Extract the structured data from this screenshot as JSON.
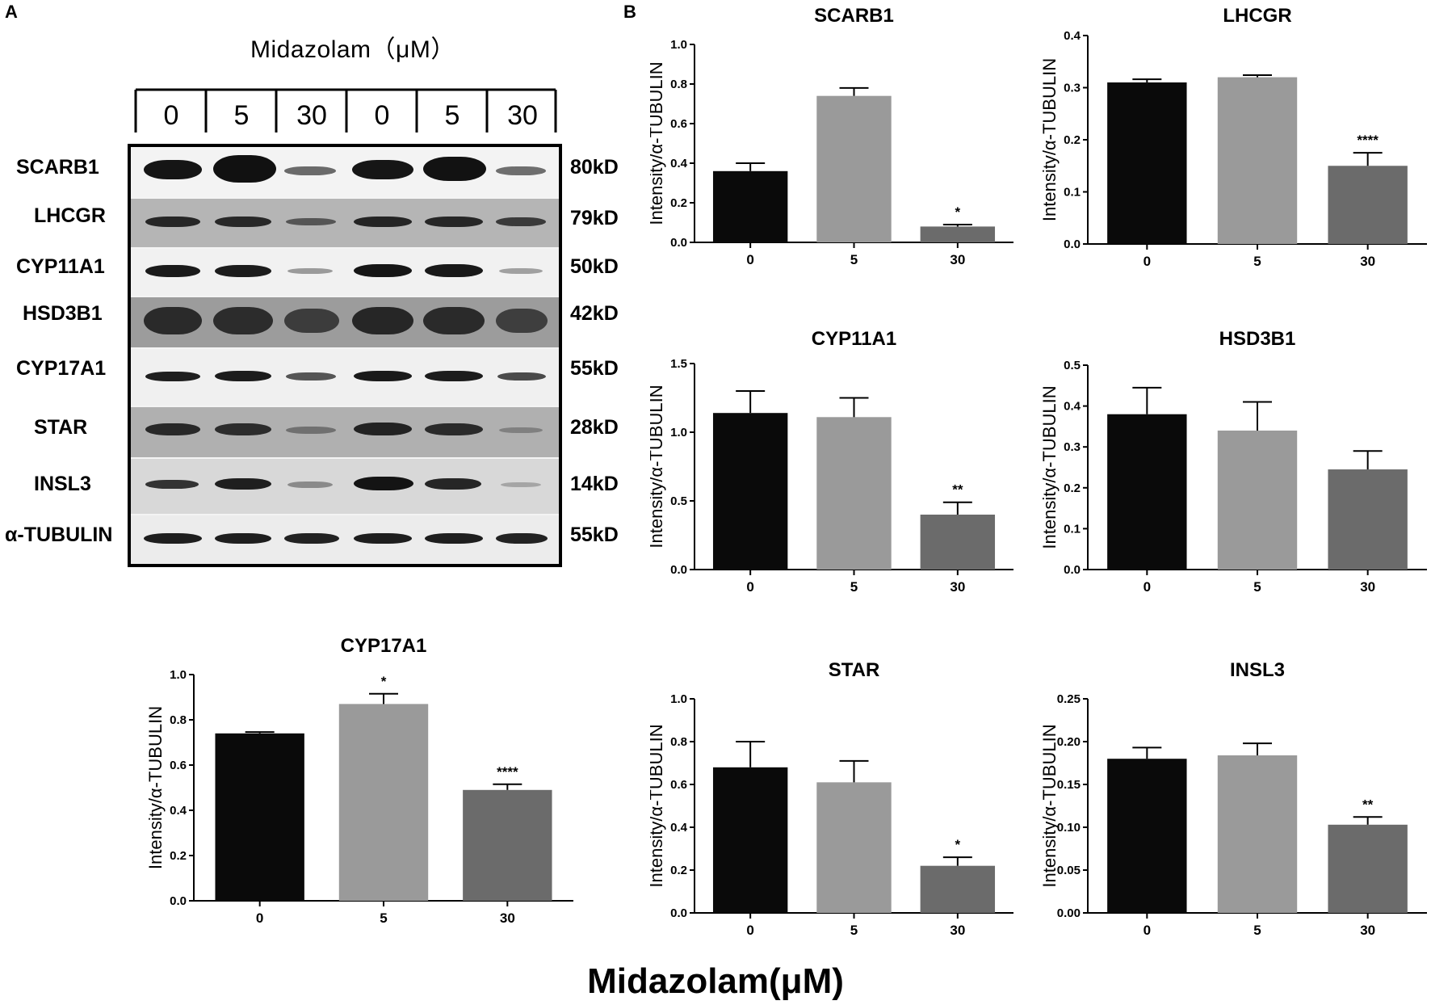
{
  "panel_labels": {
    "a": "A",
    "b": "B"
  },
  "blot": {
    "treatment_title": "Midazolam（μM）",
    "lanes": [
      "0",
      "5",
      "30",
      "0",
      "5",
      "30"
    ],
    "proteins": [
      {
        "name": "SCARB1",
        "mw": "80kD"
      },
      {
        "name": "LHCGR",
        "mw": "79kD"
      },
      {
        "name": "CYP11A1",
        "mw": "50kD"
      },
      {
        "name": "HSD3B1",
        "mw": "42kD"
      },
      {
        "name": "CYP17A1",
        "mw": "55kD"
      },
      {
        "name": "STAR",
        "mw": "28kD"
      },
      {
        "name": "INSL3",
        "mw": "14kD"
      },
      {
        "name": "α-TUBULIN",
        "mw": "55kD"
      }
    ]
  },
  "footer_label": "Midazolam(μM)",
  "colors": {
    "bar_0": "#0a0a0a",
    "bar_5": "#9a9a9a",
    "bar_30": "#6b6b6b"
  },
  "chart_data": [
    {
      "type": "bar",
      "title": "SCARB1",
      "ylabel": "Intensity/α-TUBULIN",
      "categories": [
        "0",
        "5",
        "30"
      ],
      "values": [
        0.36,
        0.74,
        0.08
      ],
      "errors": [
        0.04,
        0.04,
        0.01
      ],
      "significance": [
        "",
        "",
        "*"
      ],
      "ylim": [
        0,
        1.0
      ],
      "yticks": [
        "0.0",
        "0.2",
        "0.4",
        "0.6",
        "0.8",
        "1.0"
      ]
    },
    {
      "type": "bar",
      "title": "LHCGR",
      "ylabel": "Intensity/α-TUBULIN",
      "categories": [
        "0",
        "5",
        "30"
      ],
      "values": [
        0.31,
        0.32,
        0.15
      ],
      "errors": [
        0.006,
        0.004,
        0.025
      ],
      "significance": [
        "",
        "",
        "****"
      ],
      "ylim": [
        0,
        0.4
      ],
      "yticks": [
        "0.0",
        "0.1",
        "0.2",
        "0.3",
        "0.4"
      ]
    },
    {
      "type": "bar",
      "title": "CYP11A1",
      "ylabel": "Intensity/α-TUBULIN",
      "categories": [
        "0",
        "5",
        "30"
      ],
      "values": [
        1.14,
        1.11,
        0.4
      ],
      "errors": [
        0.16,
        0.14,
        0.09
      ],
      "significance": [
        "",
        "",
        "**"
      ],
      "ylim": [
        0,
        1.5
      ],
      "yticks": [
        "0.0",
        "0.5",
        "1.0",
        "1.5"
      ]
    },
    {
      "type": "bar",
      "title": "HSD3B1",
      "ylabel": "Intensity/α-TUBULIN",
      "categories": [
        "0",
        "5",
        "30"
      ],
      "values": [
        0.38,
        0.34,
        0.245
      ],
      "errors": [
        0.065,
        0.07,
        0.045
      ],
      "significance": [
        "",
        "",
        ""
      ],
      "ylim": [
        0,
        0.5
      ],
      "yticks": [
        "0.0",
        "0.1",
        "0.2",
        "0.3",
        "0.4",
        "0.5"
      ]
    },
    {
      "type": "bar",
      "title": "CYP17A1",
      "ylabel": "Intensity/α-TUBULIN",
      "categories": [
        "0",
        "5",
        "30"
      ],
      "values": [
        0.74,
        0.87,
        0.49
      ],
      "errors": [
        0.006,
        0.045,
        0.025
      ],
      "significance": [
        "",
        "*",
        "****"
      ],
      "ylim": [
        0,
        1.0
      ],
      "yticks": [
        "0.0",
        "0.2",
        "0.4",
        "0.6",
        "0.8",
        "1.0"
      ]
    },
    {
      "type": "bar",
      "title": "STAR",
      "ylabel": "Intensity/α-TUBULIN",
      "categories": [
        "0",
        "5",
        "30"
      ],
      "values": [
        0.68,
        0.61,
        0.22
      ],
      "errors": [
        0.12,
        0.1,
        0.04
      ],
      "significance": [
        "",
        "",
        "*"
      ],
      "ylim": [
        0,
        1.0
      ],
      "yticks": [
        "0.0",
        "0.2",
        "0.4",
        "0.6",
        "0.8",
        "1.0"
      ]
    },
    {
      "type": "bar",
      "title": "INSL3",
      "ylabel": "Intensity/α-TUBULIN",
      "categories": [
        "0",
        "5",
        "30"
      ],
      "values": [
        0.18,
        0.184,
        0.103
      ],
      "errors": [
        0.013,
        0.014,
        0.009
      ],
      "significance": [
        "",
        "",
        "**"
      ],
      "ylim": [
        0,
        0.25
      ],
      "yticks": [
        "0.00",
        "0.05",
        "0.10",
        "0.15",
        "0.20",
        "0.25"
      ]
    }
  ]
}
